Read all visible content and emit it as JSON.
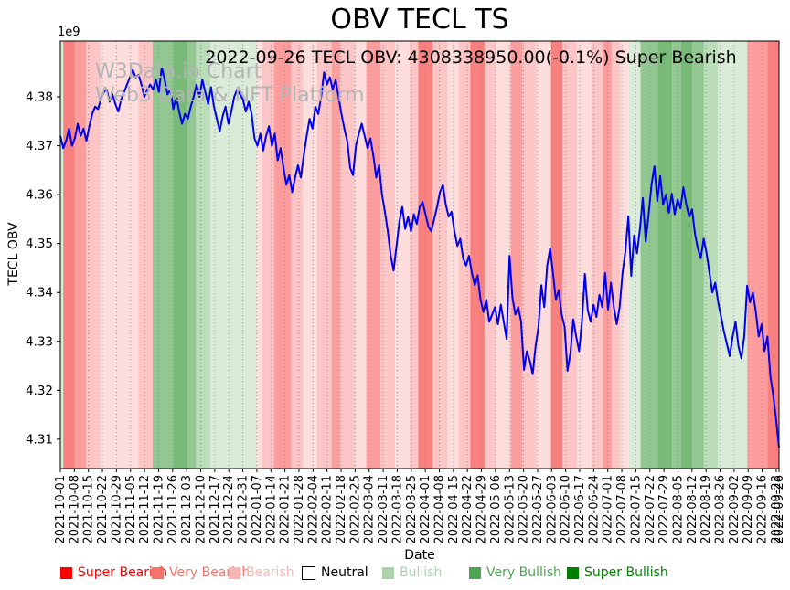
{
  "title": "OBV TECL TS",
  "subtitle": "2022-09-26 TECL OBV: 4308338950.00(-0.1%) Super Bearish",
  "watermark": {
    "line1": "W3Data.io Chart",
    "line2": "Web3 Data & NFT Platform"
  },
  "xlabel": "Date",
  "ylabel": "TECL OBV",
  "y_offset_label": "1e9",
  "chart_data": {
    "type": "line",
    "title": "OBV TECL TS",
    "xlabel": "Date",
    "ylabel": "TECL OBV",
    "y_unit": "1e9",
    "ylim": [
      4.304,
      4.3914
    ],
    "yticks": [
      4.31,
      4.32,
      4.33,
      4.34,
      4.35,
      4.36,
      4.37,
      4.38
    ],
    "grid": "vertical-dotted",
    "x_tick_labels": [
      "2021-10-01",
      "2021-10-08",
      "2021-10-15",
      "2021-10-22",
      "2021-10-29",
      "2021-11-05",
      "2021-11-12",
      "2021-11-19",
      "2021-11-26",
      "2021-12-03",
      "2021-12-10",
      "2021-12-17",
      "2021-12-24",
      "2021-12-31",
      "2022-01-07",
      "2022-01-14",
      "2022-01-21",
      "2022-01-28",
      "2022-02-04",
      "2022-02-11",
      "2022-02-18",
      "2022-02-25",
      "2022-03-04",
      "2022-03-11",
      "2022-03-18",
      "2022-03-25",
      "2022-04-01",
      "2022-04-08",
      "2022-04-15",
      "2022-04-22",
      "2022-04-29",
      "2022-05-06",
      "2022-05-13",
      "2022-05-20",
      "2022-05-27",
      "2022-06-03",
      "2022-06-10",
      "2022-06-17",
      "2022-06-24",
      "2022-07-01",
      "2022-07-08",
      "2022-07-15",
      "2022-07-22",
      "2022-07-29",
      "2022-08-05",
      "2022-08-12",
      "2022-08-19",
      "2022-08-26",
      "2022-09-02",
      "2022-09-09",
      "2022-09-16",
      "2022-09-23",
      "2022-09-26"
    ],
    "series": [
      {
        "name": "TECL OBV",
        "color": "#0000EE",
        "values": [
          4.372,
          4.3695,
          4.371,
          4.3735,
          4.37,
          4.3715,
          4.3745,
          4.372,
          4.3735,
          4.371,
          4.374,
          4.3765,
          4.378,
          4.3775,
          4.3795,
          4.381,
          4.3815,
          4.379,
          4.3805,
          4.3785,
          4.377,
          4.3795,
          4.381,
          4.3825,
          4.384,
          4.3855,
          4.384,
          4.3845,
          4.3825,
          4.38,
          4.3815,
          4.3825,
          4.3815,
          4.3835,
          4.381,
          4.386,
          4.3835,
          4.3805,
          4.3815,
          4.3775,
          4.38,
          4.377,
          4.3745,
          4.3765,
          4.3755,
          4.378,
          4.38,
          4.3825,
          4.38,
          4.3835,
          4.381,
          4.3785,
          4.382,
          4.378,
          4.3755,
          4.373,
          4.376,
          4.378,
          4.3745,
          4.377,
          4.38,
          4.3815,
          4.3805,
          4.3795,
          4.377,
          4.379,
          4.3765,
          4.3715,
          4.37,
          4.3725,
          4.369,
          4.372,
          4.374,
          4.37,
          4.3725,
          4.367,
          4.3695,
          4.3655,
          4.362,
          4.364,
          4.3605,
          4.3635,
          4.366,
          4.3635,
          4.368,
          4.372,
          4.3755,
          4.3735,
          4.378,
          4.3765,
          4.38,
          4.385,
          4.3825,
          4.384,
          4.3815,
          4.3835,
          4.38,
          4.3765,
          4.3735,
          4.371,
          4.3655,
          4.364,
          4.37,
          4.3725,
          4.3745,
          4.372,
          4.3695,
          4.3715,
          4.368,
          4.3635,
          4.366,
          4.36,
          4.3565,
          4.3525,
          4.3475,
          4.3445,
          4.3495,
          4.3545,
          4.3575,
          4.353,
          4.3555,
          4.3525,
          4.356,
          4.354,
          4.3575,
          4.3585,
          4.356,
          4.3535,
          4.3525,
          4.355,
          4.3575,
          4.3605,
          4.362,
          4.358,
          4.3555,
          4.3565,
          4.3525,
          4.3495,
          4.351,
          4.347,
          4.3455,
          4.3475,
          4.344,
          4.3415,
          4.3435,
          4.3385,
          4.336,
          4.3385,
          4.334,
          4.3355,
          4.337,
          4.3335,
          4.3375,
          4.334,
          4.3305,
          4.3475,
          4.339,
          4.3355,
          4.337,
          4.334,
          4.3242,
          4.328,
          4.326,
          4.3233,
          4.329,
          4.333,
          4.3415,
          4.337,
          4.3455,
          4.349,
          4.344,
          4.3385,
          4.3405,
          4.3355,
          4.333,
          4.324,
          4.3275,
          4.3345,
          4.331,
          4.328,
          4.334,
          4.3438,
          4.3364,
          4.334,
          4.3375,
          4.335,
          4.3395,
          4.337,
          4.344,
          4.3365,
          4.342,
          4.337,
          4.3335,
          4.337,
          4.344,
          4.3485,
          4.3556,
          4.3434,
          4.3517,
          4.348,
          4.353,
          4.3593,
          4.3504,
          4.356,
          4.362,
          4.3658,
          4.3587,
          4.3638,
          4.358,
          4.36,
          4.3563,
          4.3602,
          4.356,
          4.359,
          4.3572,
          4.3615,
          4.358,
          4.3555,
          4.357,
          4.352,
          4.349,
          4.347,
          4.351,
          4.348,
          4.344,
          4.34,
          4.342,
          4.338,
          4.335,
          4.332,
          4.3295,
          4.327,
          4.331,
          4.334,
          4.329,
          4.3265,
          4.331,
          4.3414,
          4.338,
          4.34,
          4.336,
          4.331,
          4.3335,
          4.328,
          4.331,
          4.323,
          4.319,
          4.314,
          4.3083
        ]
      }
    ],
    "signal_bands": {
      "colors": {
        "s2": "#F8807F",
        "s1": "#FA9D9C",
        "b1": "#FBC6C5",
        "b0": "#FDDEDD",
        "g0": "#DAEBD8",
        "g1": "#BCDDBA",
        "g2": "#93C791",
        "g3": "#79BA78"
      },
      "segments": [
        [
          1,
          "g0"
        ],
        [
          4,
          "s2"
        ],
        [
          4,
          "s1"
        ],
        [
          5,
          "b1"
        ],
        [
          13,
          "b0"
        ],
        [
          5,
          "b1"
        ],
        [
          7,
          "g2"
        ],
        [
          5,
          "g3"
        ],
        [
          3,
          "g2"
        ],
        [
          5,
          "g1"
        ],
        [
          16,
          "g0"
        ],
        [
          2,
          "b0"
        ],
        [
          4,
          "b1"
        ],
        [
          6,
          "s1"
        ],
        [
          4,
          "b1"
        ],
        [
          5,
          "b0"
        ],
        [
          5,
          "b1"
        ],
        [
          3,
          "s1"
        ],
        [
          5,
          "b1"
        ],
        [
          4,
          "b0"
        ],
        [
          5,
          "s1"
        ],
        [
          5,
          "b1"
        ],
        [
          5,
          "b0"
        ],
        [
          3,
          "b1"
        ],
        [
          5,
          "s2"
        ],
        [
          5,
          "b1"
        ],
        [
          4,
          "b0"
        ],
        [
          4,
          "b1"
        ],
        [
          5,
          "s2"
        ],
        [
          4,
          "b1"
        ],
        [
          5,
          "b0"
        ],
        [
          4,
          "s1"
        ],
        [
          5,
          "b1"
        ],
        [
          5,
          "b0"
        ],
        [
          4,
          "s2"
        ],
        [
          5,
          "b1"
        ],
        [
          5,
          "b0"
        ],
        [
          4,
          "b1"
        ],
        [
          3,
          "s1"
        ],
        [
          3,
          "b1"
        ],
        [
          3,
          "b0"
        ],
        [
          4,
          "g0"
        ],
        [
          6,
          "g2"
        ],
        [
          5,
          "g3"
        ],
        [
          3,
          "g2"
        ],
        [
          4,
          "g3"
        ],
        [
          4,
          "g2"
        ],
        [
          5,
          "g1"
        ],
        [
          10,
          "g0"
        ],
        [
          7,
          "s1"
        ],
        [
          4,
          "s2"
        ]
      ]
    },
    "legend": [
      {
        "label": "Super Bearish",
        "color": "#FF0000"
      },
      {
        "label": "Very Bearish",
        "color": "#F4736B"
      },
      {
        "label": "Bearish",
        "color": "#F8B7B3"
      },
      {
        "label": "Neutral",
        "color": "#FFFFFF",
        "text_color": "#000000",
        "border": "#000000"
      },
      {
        "label": "Bullish",
        "color": "#ABD3A9"
      },
      {
        "label": "Very Bullish",
        "color": "#4EA655"
      },
      {
        "label": "Super Bullish",
        "color": "#008000"
      }
    ]
  }
}
